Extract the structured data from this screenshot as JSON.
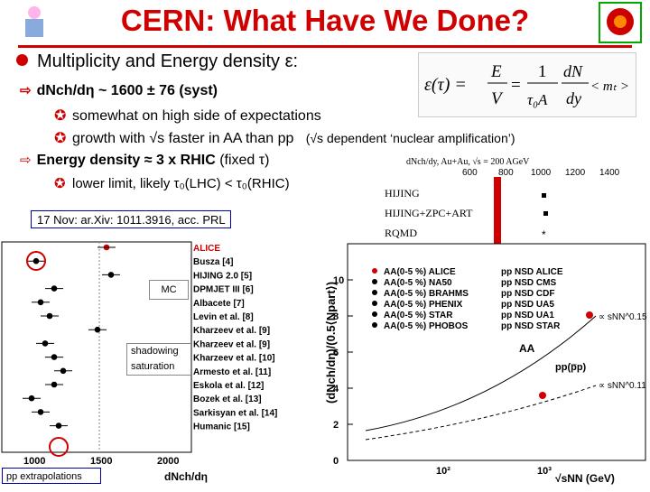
{
  "title": "CERN: What Have We Done?",
  "bullet1": "Multiplicity and Energy density ε:",
  "formula": {
    "lhs": "ε(τ) =",
    "e": "E",
    "v": "V",
    "eq": "=",
    "one": "1",
    "tau_a": "τ₀A",
    "dn": "dN",
    "dy": "dy",
    "mt": "< mₜ >"
  },
  "bullet2": "dNch/dη ~ 1600 ± 76 (syst)",
  "bullet3": "somewhat on high side of expectations",
  "bullet4": "growth with √s faster in AA than pp",
  "bullet4_note": "(√s dependent ‘nuclear amplification’)",
  "bullet5_bold": "Energy density ≈ 3 x RHIC",
  "bullet5_rest": "(fixed τ)",
  "bullet6": "lower limit, likely τ₀(LHC) < τ₀(RHIC)",
  "ref": "17 Nov: ar.Xiv: 1011.3916, acc. PRL",
  "rhic_table": {
    "header": "dNch/dy, Au+Au, √s = 200 AGeV",
    "axis": [
      "600",
      "800",
      "1000",
      "1200",
      "1400"
    ],
    "rows": [
      "HIJING",
      "HIJING+ZPC+ART",
      "RQMD"
    ]
  },
  "left_chart": {
    "models": [
      "ALICE",
      "Busza [4]",
      "HIJING 2.0 [5]",
      "DPMJET III [6]",
      "Albacete [7]",
      "Levin et al. [8]",
      "Kharzeev et al. [9]",
      "Kharzeev et al. [9]",
      "Kharzeev et al. [10]",
      "Armesto et al. [11]",
      "Eskola et al. [12]",
      "Bozek et al. [13]",
      "Sarkisyan et al. [14]",
      "Humanic [15]"
    ],
    "mc_label": "MC",
    "shadow_label": "shadowing saturation",
    "pp_label": "pp extrapolations",
    "xticks": [
      "1000",
      "1500",
      "2000"
    ],
    "xlabel": "dNch/dη"
  },
  "right_chart": {
    "ylabel": "(dNch/dη)/(0.5⟨Npart⟩)",
    "yticks": [
      "0",
      "2",
      "4",
      "6",
      "8",
      "10"
    ],
    "xticks": [
      "10²",
      "10³"
    ],
    "xlabel": "√sNN (GeV)",
    "legend_aa": [
      "AA(0-5 %) ALICE",
      "AA(0-5 %) NA50",
      "AA(0-5 %) BRAHMS",
      "AA(0-5 %) PHENIX",
      "AA(0-5 %) STAR",
      "AA(0-5 %) PHOBOS"
    ],
    "legend_pp": [
      "pp NSD ALICE",
      "pp NSD CMS",
      "pp NSD CDF",
      "pp NSD UA5",
      "pp NSD UA1",
      "pp NSD STAR"
    ],
    "aa_label": "AA",
    "pp_label": "pp(p̅p)",
    "fit_aa": "∝ sNN^0.15",
    "fit_pp": "∝ sNN^0.11"
  }
}
